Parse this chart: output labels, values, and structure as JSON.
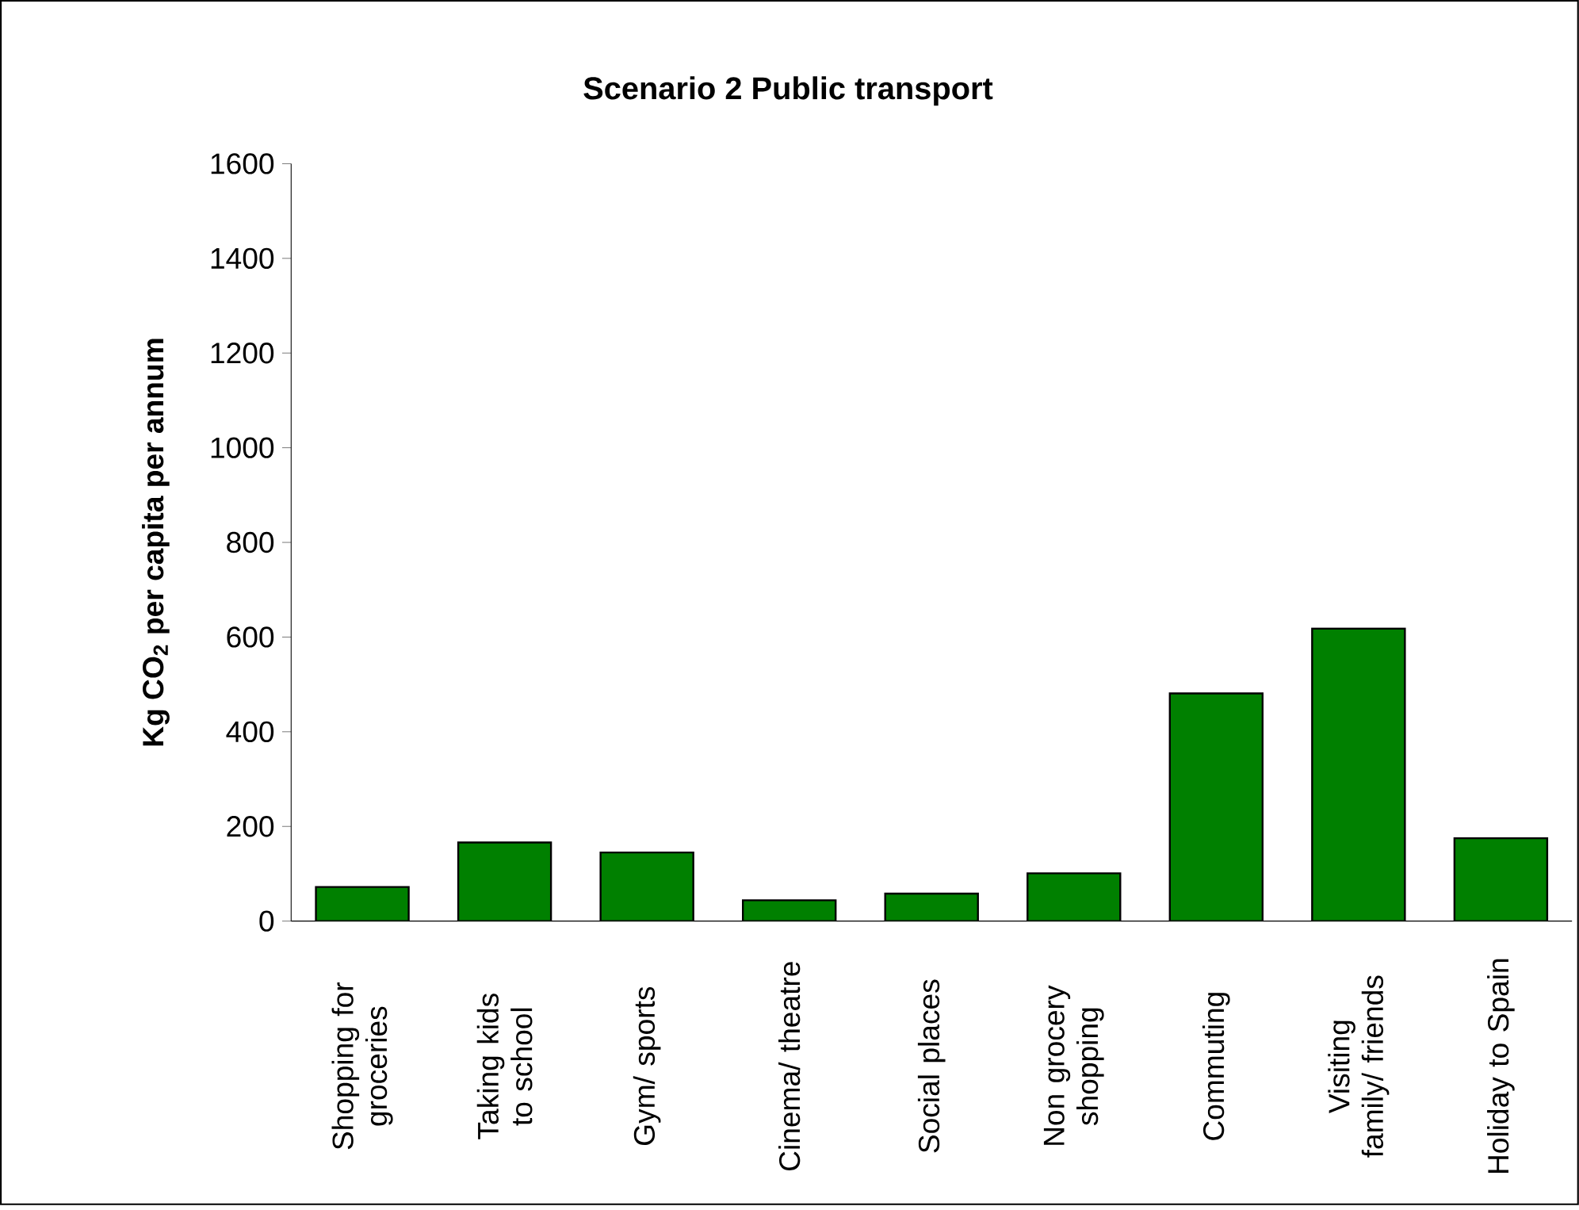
{
  "chart_data": {
    "type": "bar",
    "title": "Scenario 2 Public transport",
    "ylabel": "Kg CO$_{2}$ per capita per annum",
    "categories": [
      "Shopping for groceries",
      "Taking kids to school",
      "Gym/ sports",
      "Cinema/ theatre",
      "Social places",
      "Non grocery shopping",
      "Commuting",
      "Visiting family/ friends",
      "Holiday to Spain"
    ],
    "values": [
      72,
      166,
      145,
      44,
      58,
      101,
      481,
      618,
      175
    ],
    "color": "#008000",
    "ylim": [
      0,
      1600
    ],
    "yticks": [
      0,
      200,
      400,
      600,
      800,
      1000,
      1200,
      1400,
      1600
    ],
    "grid": false
  }
}
